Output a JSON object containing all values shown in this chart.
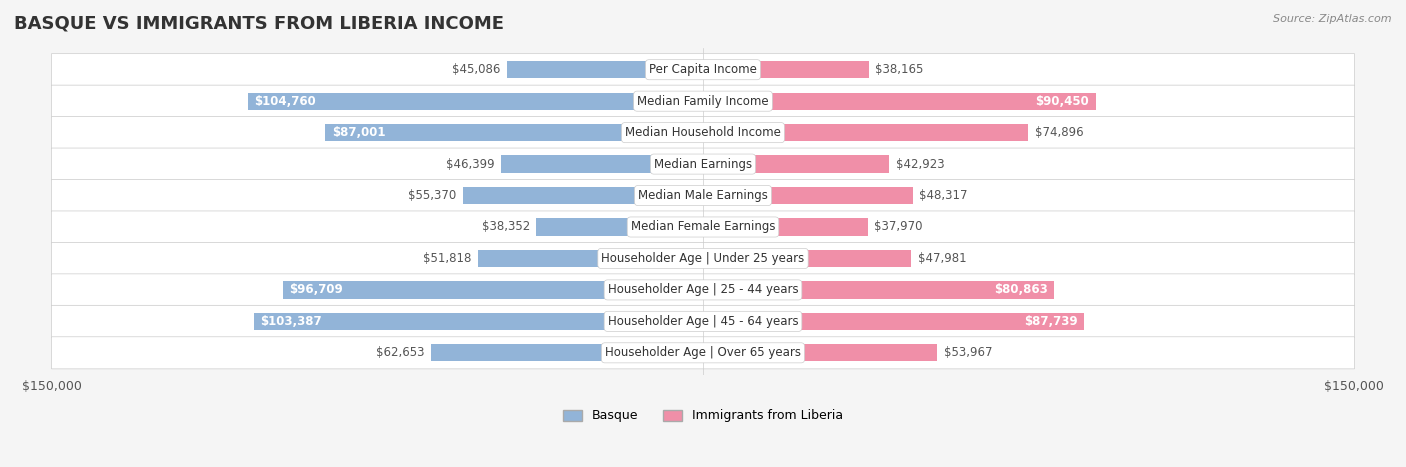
{
  "title": "BASQUE VS IMMIGRANTS FROM LIBERIA INCOME",
  "source": "Source: ZipAtlas.com",
  "categories": [
    "Per Capita Income",
    "Median Family Income",
    "Median Household Income",
    "Median Earnings",
    "Median Male Earnings",
    "Median Female Earnings",
    "Householder Age | Under 25 years",
    "Householder Age | 25 - 44 years",
    "Householder Age | 45 - 64 years",
    "Householder Age | Over 65 years"
  ],
  "basque_values": [
    45086,
    104760,
    87001,
    46399,
    55370,
    38352,
    51818,
    96709,
    103387,
    62653
  ],
  "liberia_values": [
    38165,
    90450,
    74896,
    42923,
    48317,
    37970,
    47981,
    80863,
    87739,
    53967
  ],
  "basque_labels": [
    "$45,086",
    "$104,760",
    "$87,001",
    "$46,399",
    "$55,370",
    "$38,352",
    "$51,818",
    "$96,709",
    "$103,387",
    "$62,653"
  ],
  "liberia_labels": [
    "$38,165",
    "$90,450",
    "$74,896",
    "$42,923",
    "$48,317",
    "$37,970",
    "$47,981",
    "$80,863",
    "$87,739",
    "$53,967"
  ],
  "max_value": 150000,
  "basque_color": "#92b4d8",
  "liberia_color": "#f08fa8",
  "basque_label_color_normal": "#555555",
  "basque_label_color_inside": "#ffffff",
  "liberia_label_color_normal": "#555555",
  "liberia_label_color_inside": "#ffffff",
  "inside_threshold": 80000,
  "bar_height": 0.55,
  "bg_color": "#f5f5f5",
  "row_bg_color": "#ffffff",
  "row_alt_color": "#f0f0f0",
  "label_fontsize": 8.5,
  "cat_fontsize": 8.5,
  "title_fontsize": 13
}
